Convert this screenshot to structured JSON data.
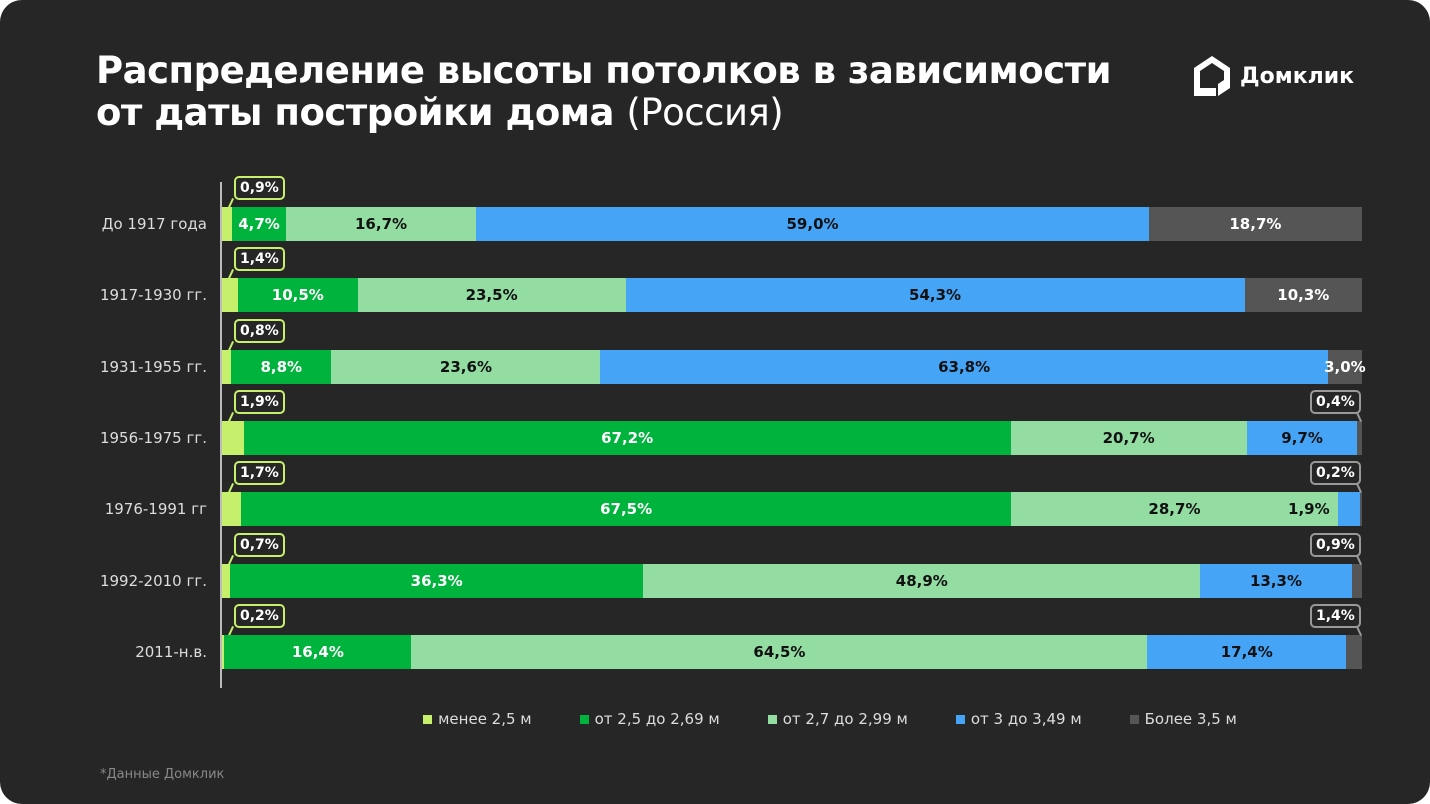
{
  "title": {
    "line1": "Распределение высоты потолков в зависимости",
    "line2": "от даты постройки дома",
    "suffix": "(Россия)"
  },
  "logo": {
    "text": "Домклик"
  },
  "footnote": "*Данные Домклик",
  "chart_data": {
    "type": "bar",
    "orientation": "horizontal",
    "stacked": true,
    "title": "Распределение высоты потолков в зависимости от даты постройки дома (Россия)",
    "categories": [
      "До 1917 года",
      "1917-1930 гг.",
      "1931-1955 гг.",
      "1956-1975 гг.",
      "1976-1991 гг",
      "1992-2010 гг.",
      "2011-н.в."
    ],
    "series": [
      {
        "name": "менее 2,5 м",
        "color": "#c6ef6b",
        "text": "#fff",
        "values": [
          0.9,
          1.4,
          0.8,
          1.9,
          1.7,
          0.7,
          0.2
        ]
      },
      {
        "name": "от 2,5 до 2,69 м",
        "color": "#00b33c",
        "text": "#fff",
        "values": [
          4.7,
          10.5,
          8.8,
          67.2,
          67.5,
          36.3,
          16.4
        ]
      },
      {
        "name": "от 2,7 до 2,99 м",
        "color": "#93dca2",
        "text": "#111",
        "values": [
          16.7,
          23.5,
          23.6,
          20.7,
          28.7,
          48.9,
          64.5
        ]
      },
      {
        "name": "от 3 до 3,49 м",
        "color": "#46a4f6",
        "text": "#111",
        "values": [
          59.0,
          54.3,
          63.8,
          9.7,
          1.9,
          13.3,
          17.4
        ]
      },
      {
        "name": "Более 3,5 м",
        "color": "#555555",
        "text": "#fff",
        "values": [
          18.7,
          10.3,
          3.0,
          0.4,
          0.2,
          0.9,
          1.4
        ]
      }
    ],
    "xlim": [
      0,
      100
    ],
    "legend": "bottom"
  }
}
